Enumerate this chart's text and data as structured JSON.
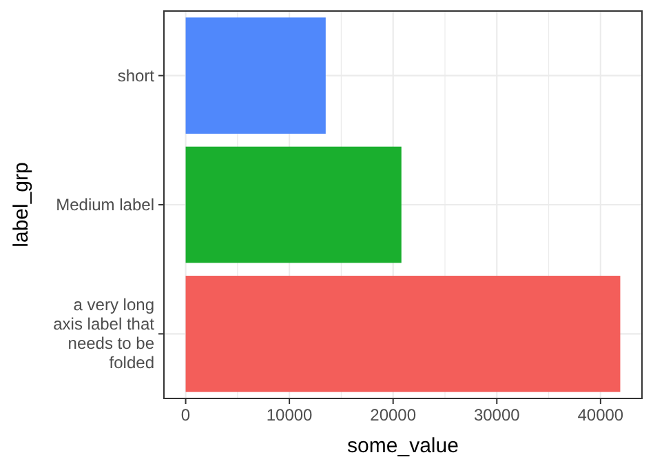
{
  "chart_data": {
    "type": "bar",
    "orientation": "horizontal",
    "xlabel": "some_value",
    "ylabel": "label_grp",
    "categories": [
      "short",
      "Medium label",
      "a very long\naxis label that\nneeds to be\nfolded"
    ],
    "values": [
      13500,
      20800,
      41900
    ],
    "colors": [
      "#5088fb",
      "#1aaf2e",
      "#f35e5a"
    ],
    "xlim": [
      -2095,
      43995
    ],
    "xticks": [
      0,
      {
        "value": 5000,
        "label": null
      },
      10000,
      {
        "value": 15000,
        "label": null
      },
      20000,
      {
        "value": 25000,
        "label": null
      },
      30000,
      {
        "value": 35000,
        "label": null
      },
      40000
    ],
    "grid": true
  }
}
